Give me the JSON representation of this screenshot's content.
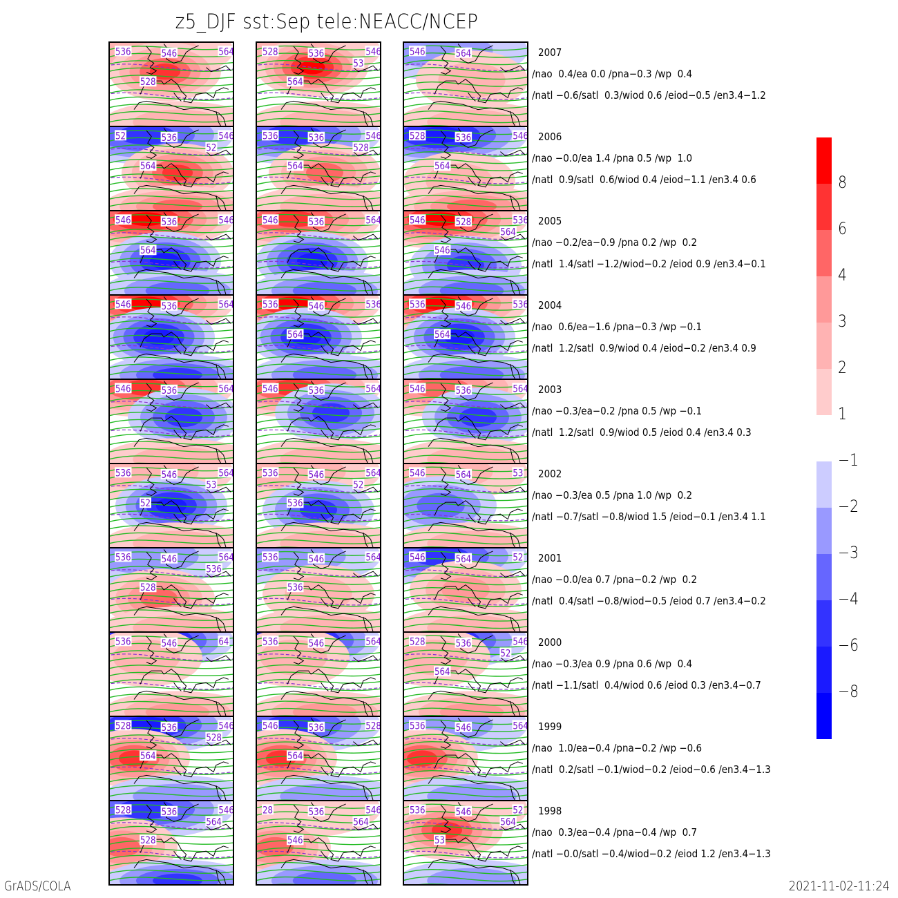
{
  "title": "z5_DJF  sst:Sep  tele:NEACC/NCEP",
  "footer": {
    "left": "GrADS/COLA",
    "right": "2021-11-02-11:24"
  },
  "colors": {
    "positive": [
      "#ffcccc",
      "#ffb3b3",
      "#ff9999",
      "#ff6666",
      "#ff3333",
      "#ff0000"
    ],
    "negative": [
      "#ccccff",
      "#9999ff",
      "#6666ff",
      "#3333ff",
      "#1a1aff",
      "#0000ff"
    ],
    "contour": "#22bb22",
    "dashed_contour": "#8833cc",
    "contour_label": "#7711cc",
    "coast": "#000000"
  },
  "colorbar": {
    "positive_labels": [
      "8",
      "6",
      "4",
      "3",
      "2",
      "1"
    ],
    "negative_labels": [
      "-1",
      "-2",
      "-3",
      "-4",
      "-6",
      "-8"
    ]
  },
  "chart_data": {
    "type": "heatmap",
    "title": "z5_DJF  sst:Sep  tele:NEACC/NCEP",
    "description": "10 rows (years) x 3 columns of DJF 500hPa height anomaly maps over Europe/N Atlantic with height contours",
    "contour_levels_labeled": [
      "528",
      "536",
      "546",
      "564"
    ],
    "colorbar_levels": [
      -8,
      -6,
      -4,
      -3,
      -2,
      -1,
      1,
      2,
      3,
      4,
      6,
      8
    ],
    "rows": [
      {
        "year": "2007",
        "nao": "0.4",
        "ea": "0.0",
        "pna": "-0.3",
        "wp": "0.4",
        "natl": "-0.6",
        "satl": "0.3",
        "wiod": "0.6",
        "eiod": "-0.5",
        "en34": "-1.2",
        "line1": "/nao  0.4/ea 0.0 /pna−0.3 /wp  0.4",
        "line2": "/natl −0.6/satl  0.3/wiod 0.6 /eiod−0.5 /en3.4−1.2",
        "panels": [
          {
            "n": 0.3,
            "c": 0.9,
            "s": 0.35,
            "cx": 0.45,
            "cy": 0.35
          },
          {
            "n": 0.4,
            "c": 1.0,
            "s": 0.3,
            "cx": 0.45,
            "cy": 0.3
          },
          {
            "n": -0.4,
            "c": 0.35,
            "s": 0.25,
            "cx": 0.55,
            "cy": 0.45
          }
        ],
        "labels": [
          [
            "536",
            "546",
            "564",
            "528"
          ],
          [
            "528",
            "536",
            "546",
            "564",
            "53"
          ],
          [
            "546",
            "564"
          ]
        ]
      },
      {
        "year": "2006",
        "nao": "-0.0",
        "ea": "1.4",
        "pna": "0.5",
        "wp": "1.0",
        "natl": "0.9",
        "satl": "0.6",
        "wiod": "0.4",
        "eiod": "-1.1",
        "en34": "0.6",
        "line1": "/nao −0.0/ea 1.4 /pna 0.5 /wp  1.0",
        "line2": "/natl  0.9/satl  0.6/wiod 0.4 /eiod−1.1 /en3.4 0.6",
        "panels": [
          {
            "n": -0.7,
            "c": 0.8,
            "s": 0.6,
            "cx": 0.55,
            "cy": 0.55
          },
          {
            "n": -0.6,
            "c": 0.6,
            "s": 0.3,
            "cx": 0.55,
            "cy": 0.55
          },
          {
            "n": -0.8,
            "c": 0.4,
            "s": 0.6,
            "cx": 0.45,
            "cy": 0.65
          }
        ],
        "labels": [
          [
            "52",
            "536",
            "546",
            "564",
            "52"
          ],
          [
            "536",
            "536",
            "546",
            "564",
            "528"
          ],
          [
            "528",
            "536",
            "546",
            "564"
          ]
        ]
      },
      {
        "year": "2005",
        "nao": "-0.2",
        "ea": "-0.9",
        "pna": "0.2",
        "wp": "0.2",
        "natl": "1.4",
        "satl": "-1.2",
        "wiod": "-0.2",
        "eiod": "0.9",
        "en34": "-0.1",
        "line1": "/nao −0.2/ea−0.9 /pna 0.2 /wp  0.2",
        "line2": "/natl  1.4/satl −1.2/wiod−0.2 /eiod 0.9 /en3.4−0.1",
        "panels": [
          {
            "n": 1.0,
            "c": -0.9,
            "s": -0.5,
            "cx": 0.45,
            "cy": 0.6
          },
          {
            "n": 0.9,
            "c": -0.9,
            "s": -0.5,
            "cx": 0.45,
            "cy": 0.6
          },
          {
            "n": 1.0,
            "c": -0.6,
            "s": -0.5,
            "cx": 0.5,
            "cy": 0.65
          }
        ],
        "labels": [
          [
            "546",
            "536",
            "546",
            "564"
          ],
          [
            "546",
            "536",
            "564"
          ],
          [
            "546",
            "528",
            "536",
            "546",
            "564"
          ]
        ]
      },
      {
        "year": "2004",
        "nao": "0.6",
        "ea": "-1.6",
        "pna": "-0.3",
        "wp": "-0.1",
        "natl": "1.2",
        "satl": "0.9",
        "wiod": "0.4",
        "eiod": "-0.2",
        "en34": "0.9",
        "line1": "/nao  0.6/ea−1.6 /pna−0.3 /wp −0.1",
        "line2": "/natl  1.2/satl  0.9/wiod 0.4 /eiod−0.2 /en3.4 0.9",
        "panels": [
          {
            "n": 1.0,
            "c": -0.8,
            "s": -0.6,
            "cx": 0.4,
            "cy": 0.5
          },
          {
            "n": 1.0,
            "c": -0.8,
            "s": -0.5,
            "cx": 0.4,
            "cy": 0.5
          },
          {
            "n": 1.0,
            "c": -0.9,
            "s": -0.5,
            "cx": 0.45,
            "cy": 0.5
          }
        ],
        "labels": [
          [
            "546",
            "536",
            "564"
          ],
          [
            "536",
            "546",
            "536",
            "564"
          ],
          [
            "536",
            "546",
            "536",
            "564"
          ]
        ]
      },
      {
        "year": "2003",
        "nao": "-0.3",
        "ea": "-0.2",
        "pna": "0.5",
        "wp": "-0.1",
        "natl": "1.2",
        "satl": "0.9",
        "wiod": "0.5",
        "eiod": "0.4",
        "en34": "0.3",
        "line1": "/nao −0.3/ea−0.2 /pna 0.5 /wp −0.1",
        "line2": "/natl  1.2/satl  0.9/wiod 0.5 /eiod 0.4 /en3.4 0.3",
        "panels": [
          {
            "n": 0.9,
            "c": -0.7,
            "s": 0.3,
            "cx": 0.6,
            "cy": 0.45
          },
          {
            "n": 0.8,
            "c": -0.7,
            "s": 0.3,
            "cx": 0.6,
            "cy": 0.4
          },
          {
            "n": 0.6,
            "c": -0.7,
            "s": 0.3,
            "cx": 0.6,
            "cy": 0.45
          }
        ],
        "labels": [
          [
            "546",
            "536",
            "564"
          ],
          [
            "546",
            "536",
            "564"
          ],
          [
            "546",
            "536",
            "564"
          ]
        ]
      },
      {
        "year": "2002",
        "nao": "-0.3",
        "ea": "0.5",
        "pna": "1.0",
        "wp": "0.2",
        "natl": "-0.7",
        "satl": "-0.8",
        "wiod": "1.5",
        "eiod": "-0.1",
        "en34": "1.1",
        "line1": "/nao −0.3/ea 0.5 /pna 1.0 /wp  0.2",
        "line2": "/natl −0.7/satl −0.8/wiod 1.5 /eiod−0.1 /en3.4 1.1",
        "panels": [
          {
            "n": 0.4,
            "c": -0.8,
            "s": 0.3,
            "cx": 0.5,
            "cy": 0.5
          },
          {
            "n": 0.3,
            "c": -0.6,
            "s": 0.3,
            "cx": 0.5,
            "cy": 0.55
          },
          {
            "n": 0.3,
            "c": -0.5,
            "s": 0.4,
            "cx": 0.3,
            "cy": 0.5
          }
        ],
        "labels": [
          [
            "536",
            "546",
            "564",
            "52",
            "53"
          ],
          [
            "536",
            "546",
            "564",
            "536",
            "52"
          ],
          [
            "546",
            "564",
            "53"
          ]
        ]
      },
      {
        "year": "2001",
        "nao": "-0.0",
        "ea": "0.7",
        "pna": "-0.2",
        "wp": "0.2",
        "natl": "0.4",
        "satl": "-0.8",
        "wiod": "-0.5",
        "eiod": "0.7",
        "en34": "-0.2",
        "line1": "/nao −0.0/ea 0.7 /pna−0.2 /wp  0.2",
        "line2": "/natl  0.4/satl −0.8/wiod−0.5 /eiod 0.7 /en3.4−0.2",
        "panels": [
          {
            "n": -0.3,
            "c": 0.6,
            "s": 0.4,
            "cx": 0.4,
            "cy": 0.6
          },
          {
            "n": -0.3,
            "c": 0.4,
            "s": 0.3,
            "cx": 0.5,
            "cy": 0.55
          },
          {
            "n": -0.7,
            "c": 0.5,
            "s": 0.3,
            "cx": 0.5,
            "cy": 0.5
          }
        ],
        "labels": [
          [
            "536",
            "546",
            "564",
            "528",
            "536"
          ],
          [
            "536",
            "546",
            "564",
            "536"
          ],
          [
            "546",
            "564",
            "52"
          ]
        ]
      },
      {
        "year": "2000",
        "nao": "-0.3",
        "ea": "0.9",
        "pna": "0.6",
        "wp": "0.4",
        "natl": "-1.1",
        "satl": "0.4",
        "wiod": "0.6",
        "eiod": "0.3",
        "en34": "-0.7",
        "line1": "/nao −0.3/ea 0.9 /pna 0.6 /wp  0.4",
        "line2": "/natl −1.1/satl  0.4/wiod 0.6 /eiod 0.3 /en3.4−0.7",
        "panels": [
          {
            "n": -1.0,
            "c": 0.4,
            "s": 0.5,
            "cx": 0.3,
            "cy": 0.3
          },
          {
            "n": -1.0,
            "c": 0.4,
            "s": 0.5,
            "cx": 0.3,
            "cy": 0.3
          },
          {
            "n": -0.9,
            "c": 0.4,
            "s": 0.5,
            "cx": 0.25,
            "cy": 0.3
          }
        ],
        "labels": [
          [
            "536",
            "546",
            "64"
          ],
          [
            "536",
            "546",
            "564"
          ],
          [
            "528",
            "536",
            "546",
            "564",
            "52"
          ]
        ]
      },
      {
        "year": "1999",
        "nao": "1.0",
        "ea": "-0.4",
        "pna": "-0.2",
        "wp": "-0.6",
        "natl": "0.2",
        "satl": "-0.1",
        "wiod": "-0.2",
        "eiod": "-0.6",
        "en34": "-1.3",
        "line1": "/nao  1.0/ea−0.4 /pna−0.2 /wp −0.6",
        "line2": "/natl  0.2/satl −0.1/wiod−0.2 /eiod−0.6 /en3.4−1.3",
        "panels": [
          {
            "n": -0.9,
            "c": 0.9,
            "s": -0.4,
            "cx": 0.2,
            "cy": 0.5
          },
          {
            "n": -0.7,
            "c": 0.8,
            "s": -0.4,
            "cx": 0.2,
            "cy": 0.5
          },
          {
            "n": -0.3,
            "c": 0.8,
            "s": -0.3,
            "cx": 0.15,
            "cy": 0.5
          }
        ],
        "labels": [
          [
            "528",
            "536",
            "546",
            "564",
            "528"
          ],
          [
            "546",
            "536",
            "528",
            "564"
          ],
          [
            "536",
            "546",
            "564"
          ]
        ]
      },
      {
        "year": "1998",
        "nao": "0.3",
        "ea": "-0.4",
        "pna": "-0.4",
        "wp": "0.7",
        "natl": "-0.0",
        "satl": "-0.4",
        "wiod": "-0.2",
        "eiod": "1.2",
        "en34": "-1.3",
        "line1": "/nao  0.3/ea−0.4 /pna−0.4 /wp  0.7",
        "line2": "/natl −0.0/satl −0.4/wiod−0.2 /eiod 1.2 /en3.4−1.3",
        "panels": [
          {
            "n": -0.6,
            "c": 0.6,
            "s": -0.6,
            "cx": 0.1,
            "cy": 0.55
          },
          {
            "n": 0.2,
            "c": 0.6,
            "s": -0.5,
            "cx": 0.15,
            "cy": 0.55
          },
          {
            "n": 0.1,
            "c": 0.8,
            "s": -0.4,
            "cx": 0.35,
            "cy": 0.35
          }
        ],
        "labels": [
          [
            "528",
            "536",
            "546",
            "528",
            "564"
          ],
          [
            "28",
            "536",
            "546",
            "546",
            "564"
          ],
          [
            "536",
            "546",
            "52",
            "53",
            "564"
          ]
        ]
      }
    ]
  }
}
